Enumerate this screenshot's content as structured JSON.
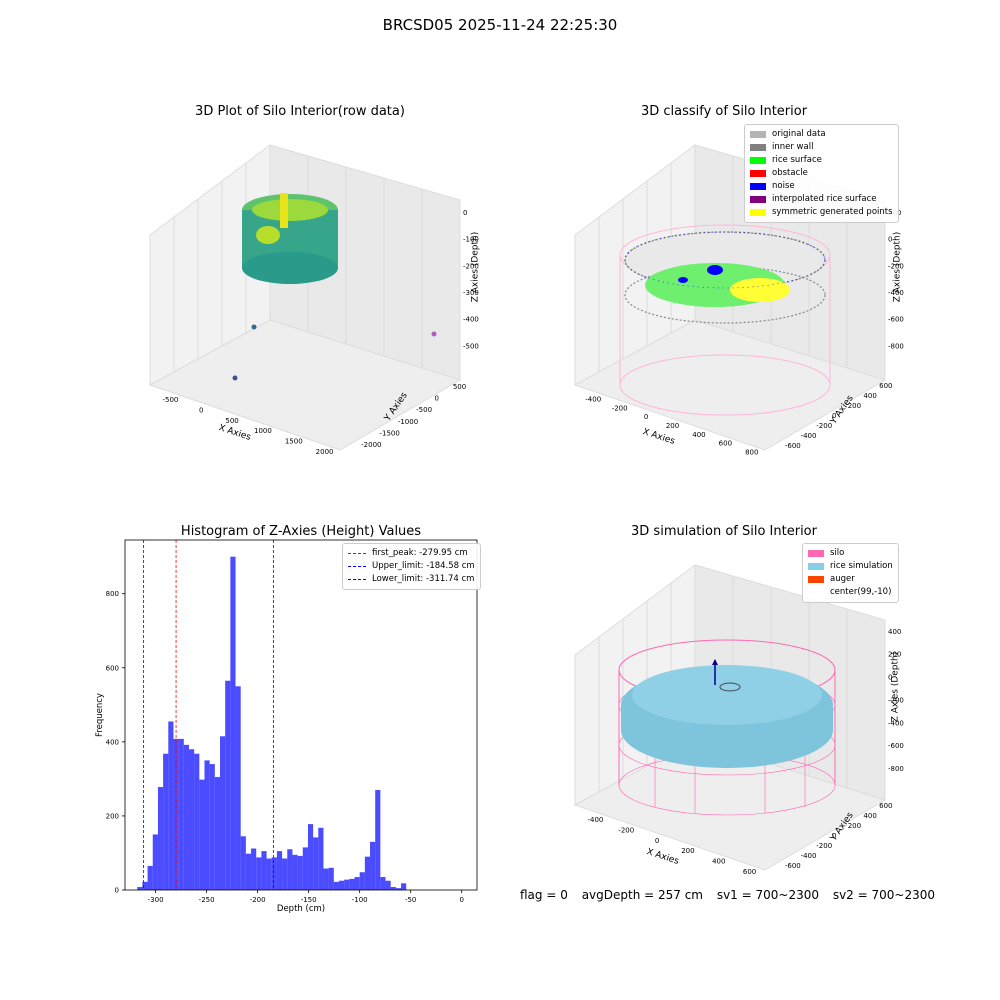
{
  "figure": {
    "title": "BRCSD05 2025-11-24 22:25:30"
  },
  "panels": {
    "raw": {
      "title": "3D Plot of Silo Interior(row data)",
      "xlabel": "X Axies",
      "ylabel": "Y Axies",
      "zlabel": "Z Axies (Depth)",
      "xticks": [
        "-500",
        "0",
        "500",
        "1000",
        "1500",
        "2000"
      ],
      "yticks": [
        "-2000",
        "-1500",
        "-1000",
        "-500",
        "0",
        "500"
      ],
      "zticks": [
        "0",
        "-100",
        "-200",
        "-300",
        "-400",
        "-500"
      ]
    },
    "classify": {
      "title": "3D classify of Silo Interior",
      "xlabel": "X Axies",
      "ylabel": "Y Axies",
      "zlabel": "Z Axies (Depth)",
      "xticks": [
        "-400",
        "-200",
        "0",
        "200",
        "400",
        "600",
        "800"
      ],
      "yticks": [
        "-600",
        "-400",
        "-200",
        "0",
        "200",
        "400",
        "600"
      ],
      "zticks": [
        "200",
        "0",
        "-200",
        "-400",
        "-600",
        "-800"
      ],
      "legend": [
        {
          "label": "original data",
          "color": "#b4b4b4"
        },
        {
          "label": "inner wall",
          "color": "#808080"
        },
        {
          "label": "rice surface",
          "color": "#00ff00"
        },
        {
          "label": "obstacle",
          "color": "#ff0000"
        },
        {
          "label": "noise",
          "color": "#0000ff"
        },
        {
          "label": "interpolated rice surface",
          "color": "#800080"
        },
        {
          "label": "symmetric generated points",
          "color": "#ffff00"
        }
      ]
    },
    "simulation": {
      "title": "3D simulation of Silo Interior",
      "xlabel": "X Axies",
      "ylabel": "Y Axies",
      "zlabel": "Z Axies (Depth)",
      "xticks": [
        "-400",
        "-200",
        "0",
        "200",
        "400",
        "600"
      ],
      "yticks": [
        "-600",
        "-400",
        "-200",
        "0",
        "200",
        "400",
        "600"
      ],
      "zticks": [
        "400",
        "200",
        "0",
        "-200",
        "-400",
        "-600",
        "-800"
      ],
      "legend": [
        {
          "label": "silo",
          "color": "#ff69b4"
        },
        {
          "label": "rice simulation",
          "color": "#87ceeb"
        },
        {
          "label": "auger",
          "color": "#ff4500"
        },
        {
          "label": "center(99,-10)",
          "color": ""
        }
      ]
    }
  },
  "footer": {
    "flag": "flag = 0",
    "avg": "avgDepth = 257 cm",
    "sv1": "sv1 = 700~2300",
    "sv2": "sv2 = 700~2300"
  },
  "chart_data": {
    "type": "bar",
    "title": "Histogram of Z-Axies (Height) Values",
    "xlabel": "Depth (cm)",
    "ylabel": "Frequency",
    "xlim": [
      -330,
      15
    ],
    "ylim": [
      0,
      945
    ],
    "xticks": [
      -300,
      -250,
      -200,
      -150,
      -100,
      -50,
      0
    ],
    "yticks": [
      0,
      200,
      400,
      600,
      800
    ],
    "bin_start": -318,
    "bin_width": 5.07,
    "values": [
      8,
      22,
      65,
      150,
      278,
      368,
      455,
      408,
      408,
      392,
      380,
      368,
      298,
      350,
      340,
      305,
      415,
      565,
      900,
      550,
      145,
      98,
      112,
      88,
      105,
      85,
      88,
      105,
      85,
      110,
      95,
      92,
      115,
      178,
      142,
      168,
      58,
      60,
      22,
      25,
      28,
      30,
      35,
      48,
      90,
      130,
      270,
      35,
      25,
      8,
      5,
      18
    ],
    "bar_color": "#0000ff",
    "lines": [
      {
        "label": "first_peak: -279.95 cm",
        "x": -279.95,
        "color": "#ff0000"
      },
      {
        "label": "Upper_limit: -184.58 cm",
        "x": -184.58,
        "color": "#0000ff"
      },
      {
        "label": "Lower_limit: -311.74 cm",
        "x": -311.74,
        "color": "#0000ff"
      }
    ],
    "legend_position": "upper right"
  }
}
